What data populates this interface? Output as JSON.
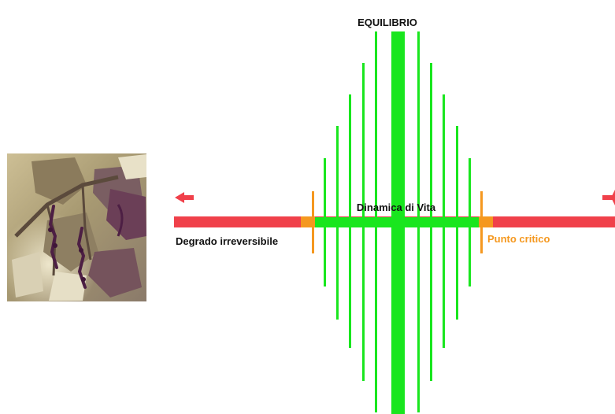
{
  "labels": {
    "top": "EQUILIBRIO",
    "center": "Dinamica di Vita",
    "left": "Degrado irreversibile",
    "right": "Punto critico"
  },
  "colors": {
    "axis_red": "#f0404a",
    "bars_green": "#19e61e",
    "critical_orange": "#f5981f",
    "text_dark": "#111111"
  },
  "photo": {
    "subject": "wilted grapevine leaves with dried grape clusters"
  }
}
